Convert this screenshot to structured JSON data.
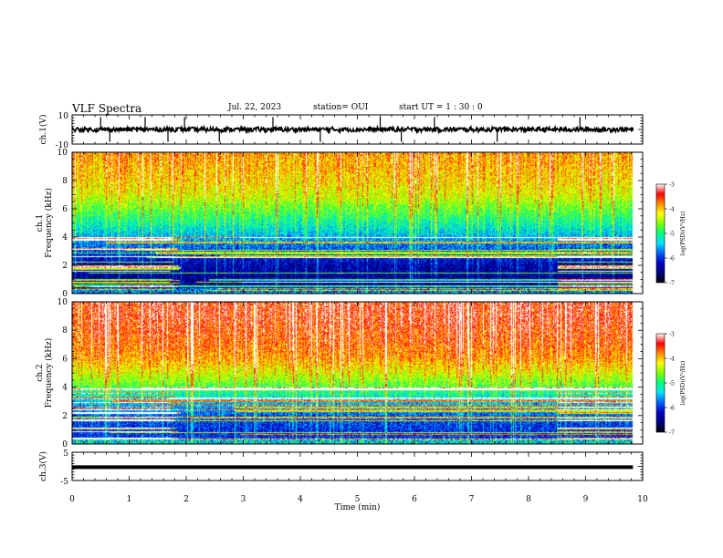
{
  "header": {
    "title": "VLF Spectra",
    "date": "Jul. 22, 2023",
    "station": "station= OUI",
    "start": "start  UT =   1 : 30 : 0"
  },
  "colorscale": {
    "label": "log(PSD)(V²/Hz)",
    "ticks": [
      "-3",
      "-4",
      "-5",
      "-6",
      "-7"
    ],
    "range": [
      -7,
      -3
    ],
    "colors": [
      "#ffffff",
      "#ff0000",
      "#ff8c00",
      "#ffff00",
      "#7fff00",
      "#00ff80",
      "#00e0ff",
      "#0060ff",
      "#0000c0",
      "#000080",
      "#000000"
    ]
  },
  "chart_data": [
    {
      "type": "line",
      "panel": "ch.1 waveform",
      "ylabel": "ch.1(V)",
      "ylim": [
        -10,
        10
      ],
      "yticks": [
        "10",
        "-10"
      ],
      "baseline_value": 0,
      "spike_times_min": [
        0.5,
        0.66,
        1.28,
        1.68,
        1.97,
        2.58,
        3.52,
        4.35,
        5.4,
        5.77,
        6.35,
        7.45,
        8.9
      ],
      "xlim": [
        0,
        10
      ]
    },
    {
      "type": "heatmap",
      "panel": "ch.1 spectrogram",
      "ylabel_lines": [
        "ch.1",
        "Frequency  (kHz)"
      ],
      "ylim": [
        0,
        10
      ],
      "yticks": [
        "0",
        "2",
        "4",
        "6",
        "8",
        "10"
      ],
      "xlim": [
        0,
        10
      ],
      "data_end_min": 9.83,
      "description_bands": {
        "freq_kHz": [
          0,
          1,
          2,
          3,
          4,
          5,
          6,
          7,
          8,
          9,
          10
        ],
        "log_psd": [
          -6.3,
          -6.5,
          -6.4,
          -6.0,
          -5.6,
          -5.2,
          -4.8,
          -4.4,
          -4.2,
          -4.1,
          -4.0
        ]
      }
    },
    {
      "type": "heatmap",
      "panel": "ch.2 spectrogram",
      "ylabel_lines": [
        "ch.2",
        "Frequency  (kHz)"
      ],
      "ylim": [
        0,
        10
      ],
      "yticks": [
        "0",
        "2",
        "4",
        "6",
        "8",
        "10"
      ],
      "xlim": [
        0,
        10
      ],
      "data_end_min": 9.83,
      "description_bands": {
        "freq_kHz": [
          0,
          1,
          2,
          3,
          4,
          5,
          6,
          7,
          8,
          9,
          10
        ],
        "log_psd": [
          -6.0,
          -6.1,
          -5.9,
          -5.5,
          -4.9,
          -4.4,
          -4.0,
          -3.8,
          -3.7,
          -3.6,
          -3.6
        ]
      }
    },
    {
      "type": "line",
      "panel": "ch.3 waveform",
      "ylabel": "ch.3(V)",
      "ylim": [
        -5,
        5
      ],
      "yticks": [
        "5",
        "-5"
      ],
      "baseline_value": -0.3,
      "xlim": [
        0,
        10
      ],
      "xlabel": "Time  (min)",
      "xticks": [
        "0",
        "1",
        "2",
        "3",
        "4",
        "5",
        "6",
        "7",
        "8",
        "9",
        "10"
      ]
    }
  ]
}
